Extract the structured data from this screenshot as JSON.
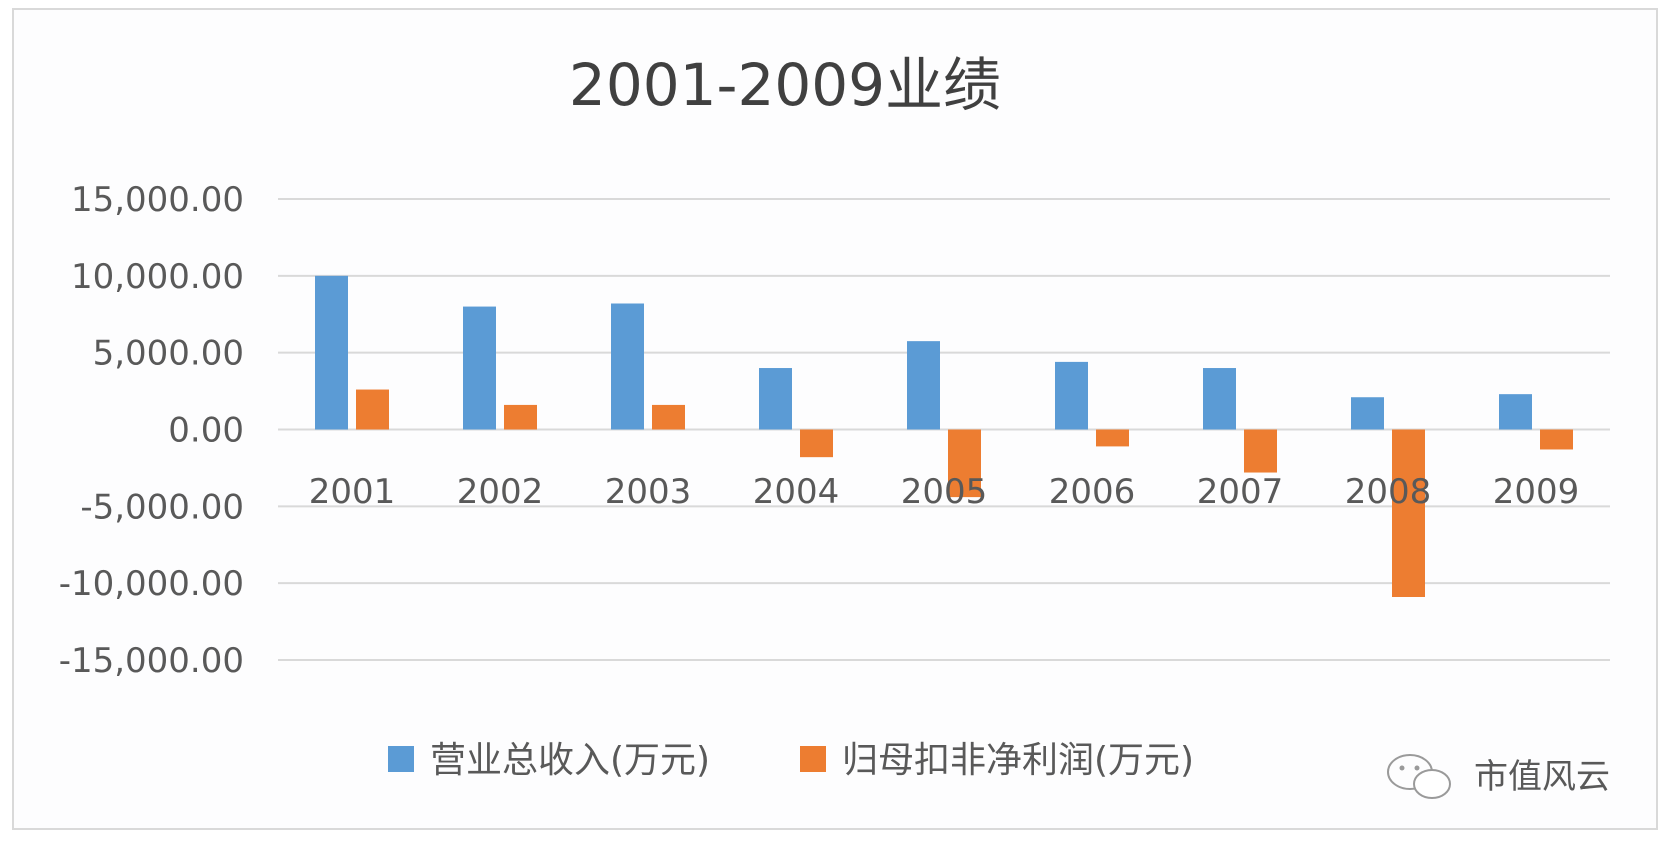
{
  "chart_data": {
    "type": "bar",
    "title": "2001-2009业绩",
    "categories": [
      "2001",
      "2002",
      "2003",
      "2004",
      "2005",
      "2006",
      "2007",
      "2008",
      "2009"
    ],
    "series": [
      {
        "name": "营业总收入(万元)",
        "color": "#5b9bd5",
        "values": [
          10000,
          8000,
          8200,
          4000,
          5750,
          4400,
          4000,
          2100,
          2300
        ]
      },
      {
        "name": "归母扣非净利润(万元)",
        "color": "#ed7d31",
        "values": [
          2600,
          1600,
          1600,
          -1800,
          -4400,
          -1100,
          -2800,
          -10900,
          -1300
        ]
      }
    ],
    "yticks": [
      "15,000.00",
      "10,000.00",
      "5,000.00",
      "0.00",
      "-5,000.00",
      "-10,000.00",
      "-15,000.00"
    ],
    "ylim": [
      -15000,
      15000
    ],
    "grid": true,
    "legend": "bottom"
  },
  "watermark": {
    "text": "市值风云",
    "icon": "wechat-logo-icon"
  }
}
